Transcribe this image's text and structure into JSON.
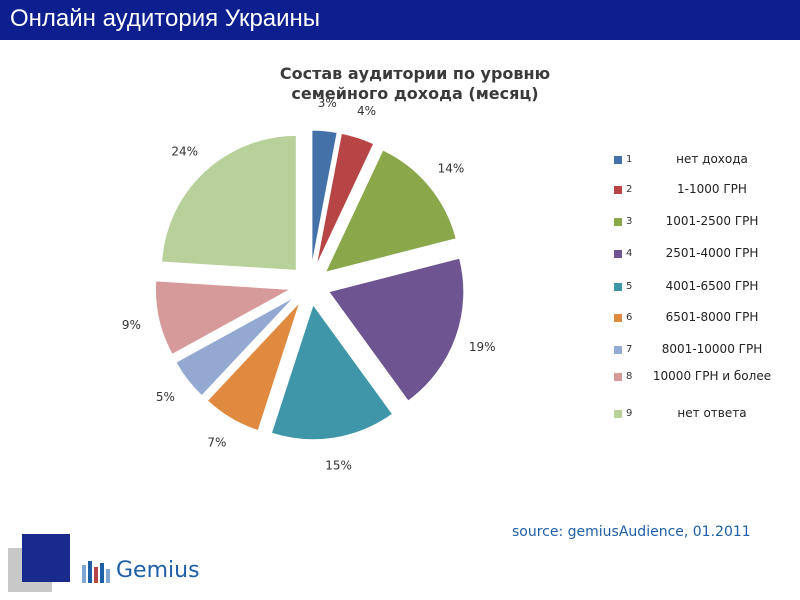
{
  "header": {
    "title": "Онлайн аудитория Украины",
    "bg_color": "#0d1f8f"
  },
  "chart_data": {
    "type": "pie",
    "title": "Состав аудитории по уровню семейного дохода  (месяц)",
    "title_lines": [
      "Состав аудитории по уровню",
      "семейного дохода  (месяц)"
    ],
    "categories": [
      "нет дохода",
      "1-1000 ГРН",
      "1001-2500 ГРН",
      "2501-4000 ГРН",
      "4001-6500 ГРН",
      "6501-8000 ГРН",
      "8001-10000 ГРН",
      "10000 ГРН и более",
      "нет ответа"
    ],
    "legend_numbers": [
      "1",
      "2",
      "3",
      "4",
      "5",
      "6",
      "7",
      "8",
      "9"
    ],
    "values": [
      3,
      4,
      14,
      19,
      15,
      7,
      5,
      9,
      24
    ],
    "value_labels": [
      "3%",
      "4%",
      "14%",
      "19%",
      "15%",
      "7%",
      "5%",
      "9%",
      "24%"
    ],
    "colors": [
      "#4472a8",
      "#b84545",
      "#8aa84a",
      "#6e5591",
      "#3e96a8",
      "#df8a3f",
      "#93a9d2",
      "#d69a9a",
      "#b8d09a"
    ],
    "legend_placement": "right",
    "exploded": true
  },
  "source": "source: gemiusAudience, 01.2011",
  "logo": {
    "name": "Gemius"
  }
}
